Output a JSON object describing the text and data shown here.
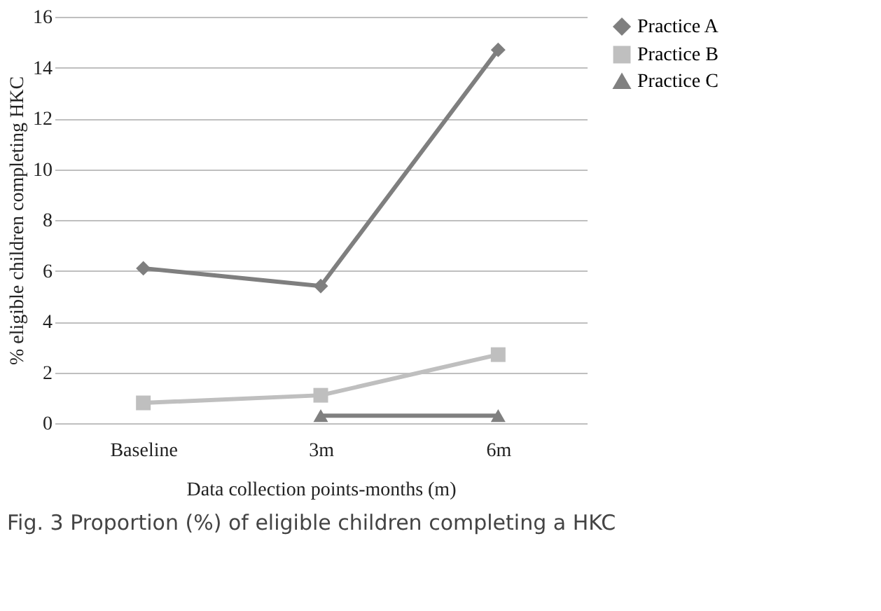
{
  "chart_data": {
    "type": "line",
    "xlabel": "Data collection points-months (m)",
    "ylabel": "% eligible children completing HKC",
    "categories": [
      "Baseline",
      "3m",
      "6m"
    ],
    "series": [
      {
        "name": "Practice A",
        "color": "#7f7f7f",
        "marker": "diamond",
        "values": [
          6.1,
          5.4,
          14.7
        ]
      },
      {
        "name": "Practice B",
        "color": "#bfbfbf",
        "marker": "square",
        "values": [
          0.8,
          1.1,
          2.7
        ]
      },
      {
        "name": "Practice C",
        "color": "#808080",
        "marker": "triangle",
        "values": [
          null,
          0.3,
          0.3
        ]
      }
    ],
    "ylim": [
      0,
      16
    ],
    "yticks": [
      0,
      2,
      4,
      6,
      8,
      10,
      12,
      14,
      16
    ],
    "grid": "y",
    "legend": "right",
    "line_style": "solid",
    "annotations": [
      "Fig. 3 Proportion (%) of eligible children completing a HKC"
    ]
  }
}
